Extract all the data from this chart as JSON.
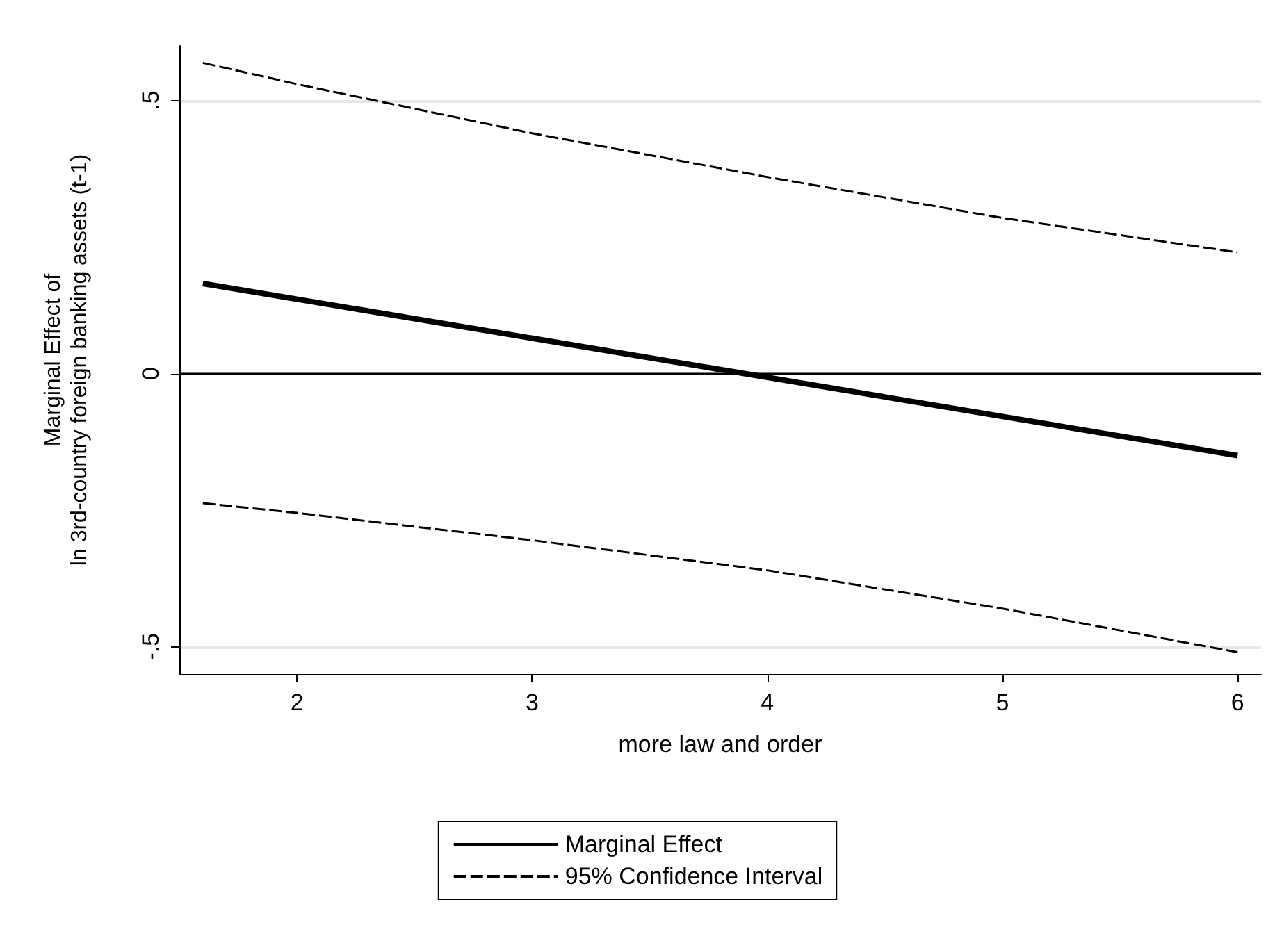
{
  "chart_data": {
    "type": "line",
    "xlabel": "more law and order",
    "ylabel": "Marginal Effect of\nln 3rd-country foreign banking assets (t-1)",
    "xlim": [
      1.5,
      6.1
    ],
    "xticks": [
      2,
      3,
      4,
      5,
      6
    ],
    "ylim": [
      -0.55,
      0.6
    ],
    "yticks": [
      {
        "value": -0.5,
        "label": "-.5"
      },
      0,
      {
        "value": 0.5,
        "label": ".5"
      }
    ],
    "grid": "y",
    "legend": "bottom",
    "marker": "none",
    "ref_lines": [
      {
        "axis": "y",
        "value": 0,
        "color": "#000000",
        "line_style": "solid"
      }
    ],
    "series": [
      {
        "name": "Marginal Effect",
        "color": "#000000",
        "line_style": "solid",
        "x": [
          1.6,
          6
        ],
        "values": [
          0.165,
          -0.15
        ]
      },
      {
        "name": "95% Confidence Interval",
        "color": "#000000",
        "line_style": "dashed",
        "x": [
          1.6,
          2,
          3,
          4,
          5,
          6
        ],
        "values": [
          0.569,
          0.53,
          0.44,
          0.36,
          0.285,
          0.222
        ]
      },
      {
        "color": "#000000",
        "line_style": "dashed",
        "x": [
          1.6,
          2,
          3,
          4,
          5,
          6
        ],
        "values": [
          -0.237,
          -0.255,
          -0.305,
          -0.36,
          -0.43,
          -0.51
        ]
      }
    ]
  }
}
